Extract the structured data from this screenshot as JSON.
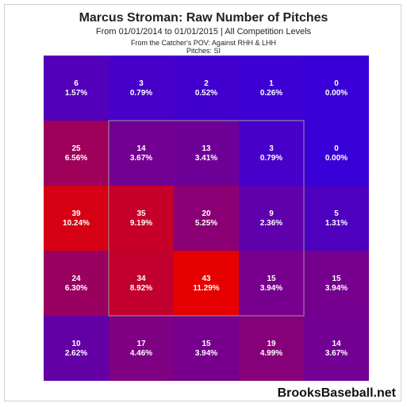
{
  "title": "Marcus Stroman: Raw Number of Pitches",
  "subtitle": "From 01/01/2014 to 01/01/2015 | All Competition Levels",
  "perspective_note": "From the Catcher's POV:  Against RHH & LHH",
  "pitch_note": "Pitches:  SI",
  "watermark": "BrooksBaseball.net",
  "chart_data": {
    "type": "heatmap",
    "rows": 5,
    "cols": 5,
    "strike_zone": {
      "row_start": 1,
      "row_end": 3,
      "col_start": 1,
      "col_end": 3
    },
    "color_scale": {
      "low": "#3a00d8",
      "high": "#e60000"
    },
    "cells": [
      [
        {
          "count": 6,
          "pct": "1.57%"
        },
        {
          "count": 3,
          "pct": "0.79%"
        },
        {
          "count": 2,
          "pct": "0.52%"
        },
        {
          "count": 1,
          "pct": "0.26%"
        },
        {
          "count": 0,
          "pct": "0.00%"
        }
      ],
      [
        {
          "count": 25,
          "pct": "6.56%"
        },
        {
          "count": 14,
          "pct": "3.67%"
        },
        {
          "count": 13,
          "pct": "3.41%"
        },
        {
          "count": 3,
          "pct": "0.79%"
        },
        {
          "count": 0,
          "pct": "0.00%"
        }
      ],
      [
        {
          "count": 39,
          "pct": "10.24%"
        },
        {
          "count": 35,
          "pct": "9.19%"
        },
        {
          "count": 20,
          "pct": "5.25%"
        },
        {
          "count": 9,
          "pct": "2.36%"
        },
        {
          "count": 5,
          "pct": "1.31%"
        }
      ],
      [
        {
          "count": 24,
          "pct": "6.30%"
        },
        {
          "count": 34,
          "pct": "8.92%"
        },
        {
          "count": 43,
          "pct": "11.29%"
        },
        {
          "count": 15,
          "pct": "3.94%"
        },
        {
          "count": 15,
          "pct": "3.94%"
        }
      ],
      [
        {
          "count": 10,
          "pct": "2.62%"
        },
        {
          "count": 17,
          "pct": "4.46%"
        },
        {
          "count": 15,
          "pct": "3.94%"
        },
        {
          "count": 19,
          "pct": "4.99%"
        },
        {
          "count": 14,
          "pct": "3.67%"
        }
      ]
    ]
  }
}
